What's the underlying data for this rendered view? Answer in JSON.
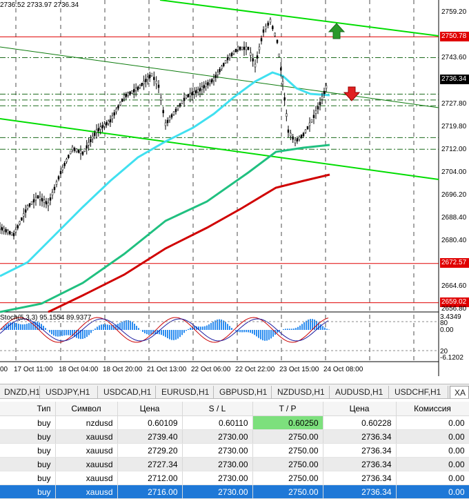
{
  "chart": {
    "ohlc_text": "2736.52 2733.97 2736.34",
    "stoch_text": "Stoch(5,3,3) 95.1554 89.9377",
    "price_axis_ticks": [
      "2759.20",
      "2743.60",
      "2727.80",
      "2719.80",
      "2712.00",
      "2704.00",
      "2696.20",
      "2688.40",
      "2680.40",
      "2664.60",
      "2656.80"
    ],
    "highlight_labels": {
      "line_2750": "2750.78",
      "current": "2736.34",
      "line_2672": "2672.57",
      "line_2659": "2659.02"
    },
    "osc_axis": [
      "3.4349",
      "80",
      "0.00",
      "20",
      "-6.1202"
    ],
    "time_axis": [
      "00",
      "17 Oct 11:00",
      "18 Oct 04:00",
      "18 Oct 20:00",
      "21 Oct 13:00",
      "22 Oct 06:00",
      "22 Oct 22:00",
      "23 Oct 15:00",
      "24 Oct 08:00"
    ],
    "colors": {
      "ma_fast": "#40e0f0",
      "ma_mid": "#20c080",
      "ma_slow": "#d00000",
      "trend": "#00dd00",
      "level": "#e00000",
      "arrow_up": "#2a9a2a",
      "arrow_down": "#e02020"
    },
    "icons": {
      "buy_arrow": "arrow-up-icon",
      "sell_arrow": "arrow-down-icon"
    }
  },
  "tabs": [
    "DNZD,H1",
    "USDJPY,H1",
    "USDCAD,H1",
    "EURUSD,H1",
    "GBPUSD,H1",
    "NZDUSD,H1",
    "AUDUSD,H1",
    "USDCHF,H1",
    "XA"
  ],
  "table": {
    "headers": [
      "Тип",
      "Символ",
      "Цена",
      "S / L",
      "T / P",
      "Цена",
      "Комиссия"
    ],
    "rows": [
      [
        "buy",
        "nzdusd",
        "0.60109",
        "0.60110",
        "0.60250",
        "0.60228",
        "0.00"
      ],
      [
        "buy",
        "xauusd",
        "2739.40",
        "2730.00",
        "2750.00",
        "2736.34",
        "0.00"
      ],
      [
        "buy",
        "xauusd",
        "2729.20",
        "2730.00",
        "2750.00",
        "2736.34",
        "0.00"
      ],
      [
        "buy",
        "xauusd",
        "2727.34",
        "2730.00",
        "2750.00",
        "2736.34",
        "0.00"
      ],
      [
        "buy",
        "xauusd",
        "2712.00",
        "2730.00",
        "2750.00",
        "2736.34",
        "0.00"
      ],
      [
        "buy",
        "xauusd",
        "2716.00",
        "2730.00",
        "2750.00",
        "2736.34",
        "0.00"
      ]
    ]
  }
}
